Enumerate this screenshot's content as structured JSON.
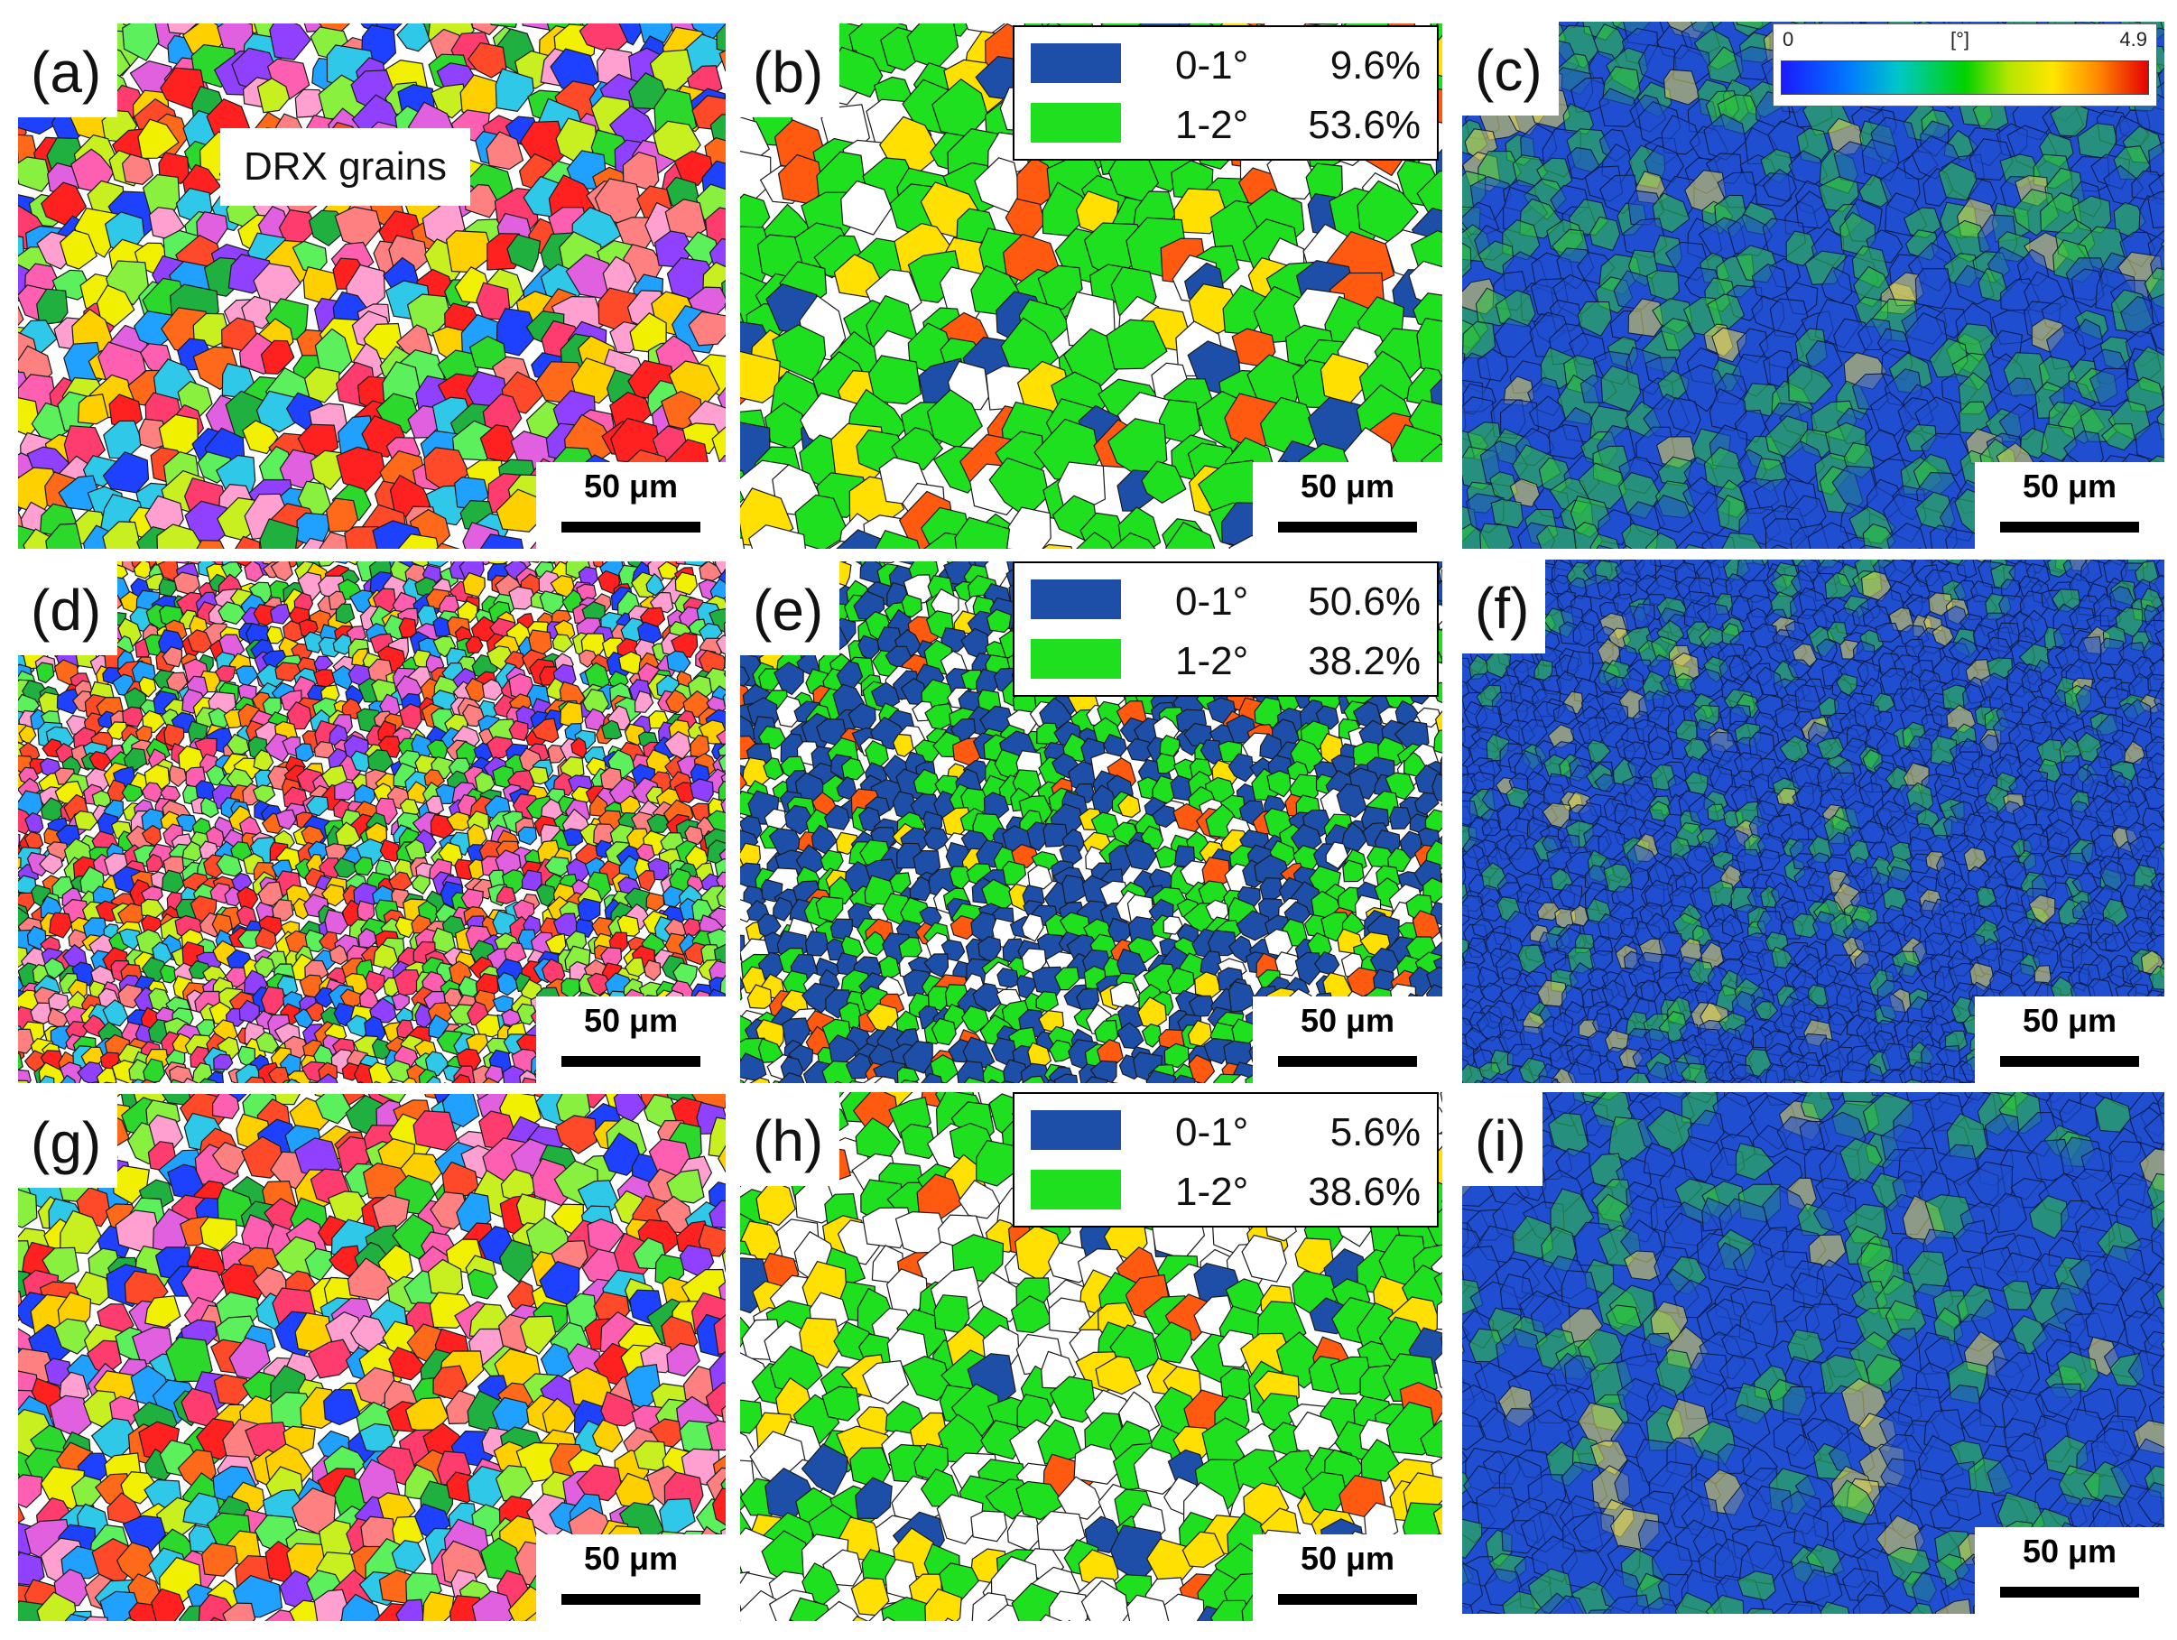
{
  "panels": [
    {
      "label": "(a)",
      "kind": "ipf",
      "scale": "50 μm",
      "seed": 11,
      "size": 36
    },
    {
      "label": "(b)",
      "kind": "gos",
      "scale": "50 μm",
      "seed": 12,
      "size": 46,
      "legend": [
        {
          "range": "0-1°",
          "percent": "9.6%"
        },
        {
          "range": "1-2°",
          "percent": "53.6%"
        }
      ],
      "gos_fractions": {
        "blue": 0.08,
        "green": 0.55,
        "white": 0.2,
        "yellow": 0.1,
        "orange": 0.07
      }
    },
    {
      "label": "(c)",
      "kind": "kam",
      "scale": "50 μm",
      "seed": 13,
      "size": 34,
      "kam_level": 0.45
    },
    {
      "label": "(d)",
      "kind": "ipf",
      "scale": "50 μm",
      "seed": 21,
      "size": 20
    },
    {
      "label": "(e)",
      "kind": "gos",
      "scale": "50 μm",
      "seed": 22,
      "size": 24,
      "legend": [
        {
          "range": "0-1°",
          "percent": "50.6%"
        },
        {
          "range": "1-2°",
          "percent": "38.2%"
        }
      ],
      "gos_fractions": {
        "blue": 0.5,
        "green": 0.3,
        "white": 0.1,
        "yellow": 0.04,
        "orange": 0.06
      }
    },
    {
      "label": "(f)",
      "kind": "kam",
      "scale": "50 μm",
      "seed": 23,
      "size": 22,
      "kam_level": 0.18
    },
    {
      "label": "(g)",
      "kind": "ipf",
      "scale": "50 μm",
      "seed": 31,
      "size": 34
    },
    {
      "label": "(h)",
      "kind": "gos",
      "scale": "50 μm",
      "seed": 32,
      "size": 40,
      "legend": [
        {
          "range": "0-1°",
          "percent": "5.6%"
        },
        {
          "range": "1-2°",
          "percent": "38.6%"
        }
      ],
      "gos_fractions": {
        "blue": 0.05,
        "green": 0.4,
        "white": 0.32,
        "yellow": 0.18,
        "orange": 0.05
      }
    },
    {
      "label": "(i)",
      "kind": "kam",
      "scale": "50 μm",
      "seed": 33,
      "size": 36,
      "kam_level": 0.22
    }
  ],
  "drx_label": "DRX grains",
  "colorbar": {
    "min": "0",
    "unit": "[°]",
    "max": "4.9"
  },
  "colors": {
    "gos_blue": "#1e4fa8",
    "gos_green": "#1ee01e",
    "gos_yellow": "#ffe000",
    "gos_orange": "#ff5a10",
    "gos_white": "#ffffff",
    "ipf": [
      "#ff2020",
      "#ff4a2a",
      "#ff6a1a",
      "#ff3c6e",
      "#ff5fb0",
      "#e060e0",
      "#2cd82c",
      "#5cf05c",
      "#20b040",
      "#8af040",
      "#c8f020",
      "#f0f000",
      "#ffd000",
      "#30c8e8",
      "#20a0ff",
      "#1e40ff",
      "#9040ff",
      "#ff8080",
      "#ffa0d0"
    ],
    "kam_base": "#1f4fd0",
    "kam_green": "#2ec43a",
    "kam_yellow": "#e8d84a"
  }
}
